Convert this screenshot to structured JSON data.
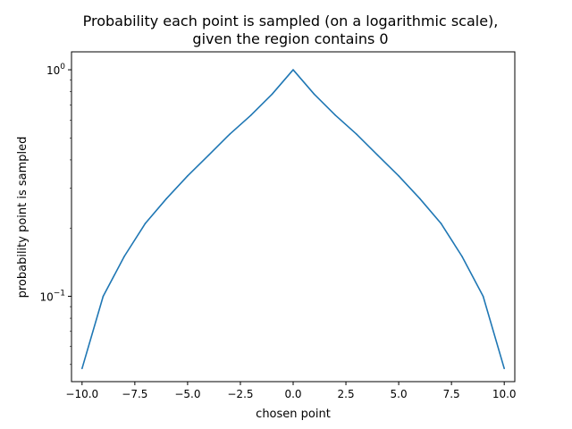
{
  "chart_data": {
    "type": "line",
    "title": "Probability each point is sampled (on a logarithmic scale),",
    "subtitle": "given the region contains 0",
    "xlabel": "chosen point",
    "ylabel": "probability point is sampled",
    "yscale": "log",
    "grid": false,
    "legend": "none",
    "xlim": [
      -10.5,
      10.5
    ],
    "ylim": [
      0.042,
      1.2
    ],
    "x_ticks": [
      "−10.0",
      "−7.5",
      "−5.0",
      "−2.5",
      "0.0",
      "2.5",
      "5.0",
      "7.5",
      "10.0"
    ],
    "x_tick_values": [
      -10,
      -7.5,
      -5,
      -2.5,
      0,
      2.5,
      5,
      7.5,
      10
    ],
    "y_ticks": [
      {
        "value": 1,
        "base": "10",
        "exp": "0"
      },
      {
        "value": 0.1,
        "base": "10",
        "exp": "−1"
      }
    ],
    "series_color": "#1f77b4",
    "series": [
      {
        "x": [
          -10,
          -9,
          -8,
          -7,
          -6,
          -5,
          -4,
          -3,
          -2,
          -1,
          0,
          1,
          2,
          3,
          4,
          5,
          6,
          7,
          8,
          9,
          10
        ],
        "values": [
          0.048,
          0.1,
          0.15,
          0.21,
          0.27,
          0.34,
          0.42,
          0.52,
          0.63,
          0.78,
          1.0,
          0.78,
          0.63,
          0.52,
          0.42,
          0.34,
          0.27,
          0.21,
          0.15,
          0.1,
          0.048
        ]
      }
    ]
  }
}
